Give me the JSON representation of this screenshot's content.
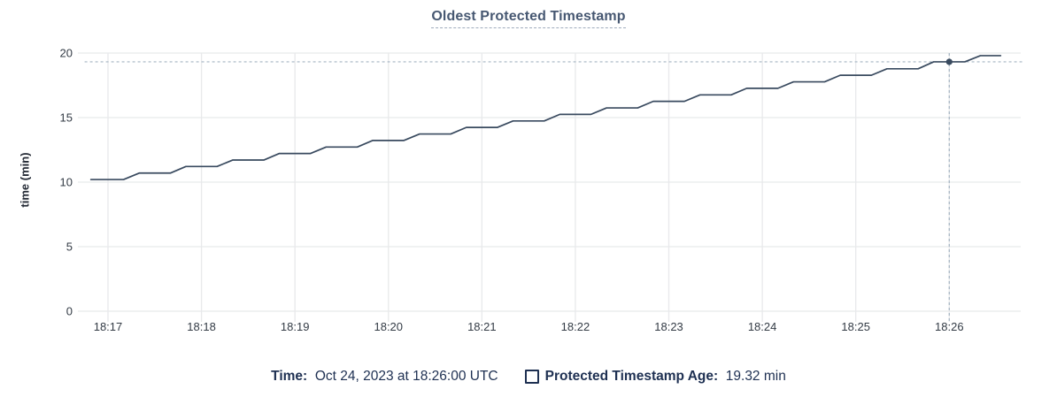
{
  "title": "Oldest Protected Timestamp",
  "chart_data": {
    "type": "line",
    "title": "Oldest Protected Timestamp",
    "xlabel": "",
    "ylabel": "time (min)",
    "ylim": [
      0,
      20
    ],
    "yticks": [
      {
        "value": 0,
        "label": "0"
      },
      {
        "value": 5,
        "label": "5"
      },
      {
        "value": 10,
        "label": "10"
      },
      {
        "value": 15,
        "label": "15"
      },
      {
        "value": 20,
        "label": "20"
      }
    ],
    "x_domain_seconds": [
      0,
      602
    ],
    "xticks": [
      {
        "t": 15,
        "label": "18:17"
      },
      {
        "t": 75,
        "label": "18:18"
      },
      {
        "t": 135,
        "label": "18:19"
      },
      {
        "t": 195,
        "label": "18:20"
      },
      {
        "t": 255,
        "label": "18:21"
      },
      {
        "t": 315,
        "label": "18:22"
      },
      {
        "t": 375,
        "label": "18:23"
      },
      {
        "t": 435,
        "label": "18:24"
      },
      {
        "t": 495,
        "label": "18:25"
      },
      {
        "t": 555,
        "label": "18:26"
      }
    ],
    "grid": true,
    "legend_position": "bottom",
    "series": [
      {
        "name": "Protected Timestamp Age",
        "unit": "min",
        "points": [
          [
            4,
            10.2
          ],
          [
            25,
            10.2
          ],
          [
            35,
            10.7
          ],
          [
            55,
            10.7
          ],
          [
            65,
            11.21
          ],
          [
            85,
            11.21
          ],
          [
            95,
            11.71
          ],
          [
            115,
            11.71
          ],
          [
            125,
            12.22
          ],
          [
            145,
            12.22
          ],
          [
            155,
            12.72
          ],
          [
            175,
            12.72
          ],
          [
            185,
            13.23
          ],
          [
            205,
            13.23
          ],
          [
            215,
            13.73
          ],
          [
            235,
            13.73
          ],
          [
            245,
            14.24
          ],
          [
            265,
            14.24
          ],
          [
            275,
            14.74
          ],
          [
            295,
            14.74
          ],
          [
            305,
            15.25
          ],
          [
            325,
            15.25
          ],
          [
            335,
            15.75
          ],
          [
            355,
            15.75
          ],
          [
            365,
            16.26
          ],
          [
            385,
            16.26
          ],
          [
            395,
            16.76
          ],
          [
            415,
            16.76
          ],
          [
            425,
            17.27
          ],
          [
            445,
            17.27
          ],
          [
            455,
            17.77
          ],
          [
            475,
            17.77
          ],
          [
            485,
            18.28
          ],
          [
            505,
            18.28
          ],
          [
            515,
            18.78
          ],
          [
            535,
            18.78
          ],
          [
            545,
            19.32
          ],
          [
            565,
            19.32
          ],
          [
            575,
            19.8
          ],
          [
            588,
            19.8
          ]
        ]
      }
    ],
    "crosshair": {
      "t": 555,
      "value": 19.32,
      "time_label": "18:26:00"
    }
  },
  "legend": {
    "time_label": "Time:",
    "time_value": "  Oct 24, 2023 at 18:26:00 UTC",
    "series_label": "Protected Timestamp Age:",
    "series_value": "  19.32 min",
    "series_checked": false
  },
  "colors": {
    "background": "#ffffff",
    "title_text": "#475872",
    "title_underline": "#9fabbc",
    "legend_text": "#1e3052",
    "series_line": "#394a5f",
    "crosshair_dot": "#394a5f",
    "crosshair_dashed": "#a3b3c2",
    "grid": "#e8e9eb",
    "tick_text": "#333b45",
    "axis_label_text": "#242a35"
  }
}
